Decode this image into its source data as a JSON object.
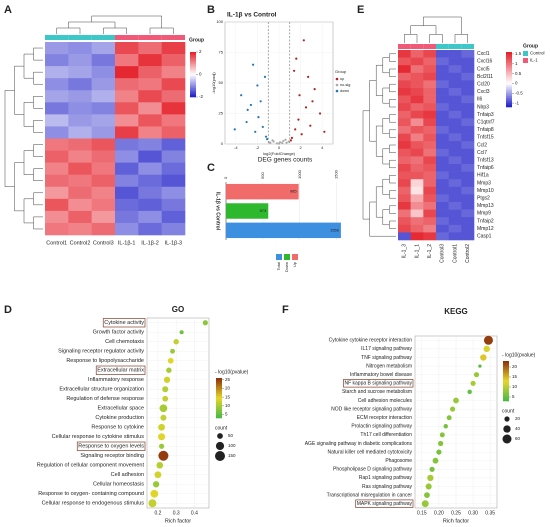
{
  "chart_data": [
    {
      "type": "heatmap",
      "panel": "A",
      "legend_title": "Group",
      "columns": [
        "Control1",
        "Control2",
        "Control3",
        "IL-1β-1",
        "IL-1β-2",
        "IL-1β-3"
      ],
      "column_colors": [
        "#3cc8c8",
        "#3cc8c8",
        "#3cc8c8",
        "#f05a78",
        "#f05a78",
        "#f05a78"
      ],
      "values": [
        [
          -0.9,
          -1.0,
          -0.8,
          1.6,
          1.3,
          1.7
        ],
        [
          -1.1,
          -0.9,
          -1.2,
          1.2,
          1.8,
          1.4
        ],
        [
          -0.7,
          -0.8,
          -1.0,
          1.9,
          1.4,
          1.1
        ],
        [
          -1.0,
          -1.2,
          -0.9,
          1.3,
          1.2,
          1.6
        ],
        [
          -0.8,
          -0.9,
          -0.7,
          1.1,
          1.6,
          1.3
        ],
        [
          -1.2,
          -1.0,
          -1.1,
          1.5,
          1.0,
          1.8
        ],
        [
          -0.6,
          -0.9,
          -0.8,
          1.0,
          1.5,
          1.2
        ],
        [
          -1.0,
          -0.7,
          -0.9,
          1.7,
          1.1,
          1.4
        ],
        [
          1.2,
          1.3,
          1.5,
          -1.2,
          -1.1,
          -1.4
        ],
        [
          1.4,
          1.1,
          1.3,
          -1.0,
          -1.5,
          -1.1
        ],
        [
          1.1,
          1.5,
          1.2,
          -1.4,
          -1.0,
          -1.3
        ],
        [
          1.3,
          1.2,
          1.4,
          -1.1,
          -1.3,
          -1.5
        ],
        [
          0.9,
          1.3,
          1.1,
          -1.5,
          -1.2,
          -1.0
        ],
        [
          1.5,
          1.0,
          1.2,
          -1.3,
          -1.4,
          -1.2
        ],
        [
          1.0,
          1.4,
          0.9,
          -1.2,
          -1.0,
          -1.4
        ],
        [
          1.2,
          1.1,
          1.3,
          -1.0,
          -1.3,
          -1.1
        ]
      ],
      "clim": [
        -2,
        2
      ],
      "cticks": [
        2,
        0,
        -2
      ]
    },
    {
      "type": "scatter",
      "panel": "B",
      "title": "IL-1β vs Control",
      "xlabel": "log2(FoldChange)",
      "ylabel": "-log10(padj)",
      "legend_title": "Group",
      "xlim": [
        -5,
        5
      ],
      "xticks": [
        -4,
        -2,
        0,
        2,
        4
      ],
      "ylim": [
        0,
        100
      ],
      "yticks": [
        0,
        25,
        50,
        75,
        100
      ],
      "thresholds": [
        -1,
        1
      ],
      "series": [
        {
          "name": "up",
          "color": "#b22222",
          "x": [
            1.2,
            1.5,
            1.8,
            2.1,
            2.5,
            2.9,
            3.3,
            3.8,
            4.2,
            1.4,
            1.9,
            2.3,
            2.7,
            3.1,
            1.1,
            1.6
          ],
          "values": [
            5,
            12,
            20,
            8,
            30,
            15,
            45,
            25,
            10,
            60,
            40,
            85,
            55,
            35,
            3,
            70
          ]
        },
        {
          "name": "no-sig",
          "color": "#aaaaaa",
          "x": [
            -0.8,
            -0.5,
            -0.2,
            0.1,
            0.4,
            0.7,
            -0.6,
            0.3,
            0.9,
            -0.9,
            0,
            0.6
          ],
          "values": [
            1,
            2,
            0.5,
            1.5,
            2.5,
            1,
            3,
            0.8,
            2,
            1.2,
            0.3,
            3.5
          ]
        },
        {
          "name": "down",
          "color": "#1f78b4",
          "x": [
            -1.2,
            -1.5,
            -1.9,
            -2.2,
            -2.6,
            -3.0,
            -3.5,
            -4.1,
            -1.3,
            -1.7,
            -2.4,
            -2.9,
            -1.1,
            -2.0
          ],
          "values": [
            6,
            14,
            22,
            10,
            32,
            18,
            40,
            12,
            55,
            35,
            65,
            28,
            4,
            48
          ]
        }
      ]
    },
    {
      "type": "hbar",
      "panel": "C",
      "title": "DEG genes counts",
      "ylabel": "IL-1β vs Control",
      "categories": [
        "Up",
        "Down",
        "Total"
      ],
      "values": [
        985,
        573,
        1558
      ],
      "colors": [
        "#f26b6b",
        "#2eb82e",
        "#3d8fe0"
      ],
      "xlim": [
        0,
        1600
      ],
      "xticks": [
        0,
        500,
        1000,
        1500
      ]
    },
    {
      "type": "heatmap",
      "panel": "E",
      "legend_title": "Group",
      "columns": [
        "IL-1_3",
        "IL-1_1",
        "IL-1_2",
        "Control3",
        "Control1",
        "Control2"
      ],
      "column_colors": [
        "#f05a78",
        "#f05a78",
        "#f05a78",
        "#3cc8c8",
        "#3cc8c8",
        "#3cc8c8"
      ],
      "groups": [
        {
          "name": "Control",
          "color": "#3cc8c8"
        },
        {
          "name": "IL-1",
          "color": "#f05a78"
        }
      ],
      "rows": [
        "Cxcl1",
        "Cxcl16",
        "Cxcl5",
        "Bcl2l11",
        "Ccl20",
        "Cxcl3",
        "Il6",
        "Nlrp3",
        "Tnfaip3",
        "C1qtnf7",
        "Tnfaip8",
        "Tnfsf15",
        "Ccl2",
        "Ccl7",
        "Tnfsf13",
        "Tnfaip6",
        "Hif1a",
        "Mmp3",
        "Mmp10",
        "Ptgs2",
        "Mmp13",
        "Mmp9",
        "Tnfaip2",
        "Mmp12",
        "Casp1"
      ],
      "values": [
        [
          1.4,
          1.1,
          1.3,
          -0.9,
          -0.9,
          -0.8
        ],
        [
          1.2,
          1.3,
          1.1,
          -0.8,
          -0.9,
          -0.9
        ],
        [
          1.5,
          1.0,
          1.2,
          -0.9,
          -0.8,
          -0.9
        ],
        [
          1.1,
          1.2,
          1.3,
          -0.9,
          -0.9,
          -0.8
        ],
        [
          1.3,
          1.2,
          1.0,
          -0.8,
          -0.9,
          -0.9
        ],
        [
          1.4,
          1.3,
          1.1,
          -0.9,
          -0.8,
          -0.9
        ],
        [
          1.2,
          1.4,
          1.1,
          -0.9,
          -0.9,
          -0.8
        ],
        [
          1.3,
          1.1,
          1.2,
          -0.8,
          -0.9,
          -0.9
        ],
        [
          1.1,
          1.3,
          1.4,
          -0.9,
          -0.8,
          -0.9
        ],
        [
          1.2,
          0.8,
          1.3,
          -0.9,
          -0.9,
          -0.8
        ],
        [
          1.0,
          1.2,
          1.1,
          -0.8,
          -0.9,
          -0.9
        ],
        [
          1.3,
          0.9,
          1.2,
          -0.9,
          -0.8,
          -0.9
        ],
        [
          1.4,
          1.2,
          1.1,
          -0.9,
          -0.9,
          -0.8
        ],
        [
          1.2,
          1.3,
          1.0,
          -0.8,
          -0.9,
          -0.9
        ],
        [
          1.1,
          1.0,
          1.3,
          -0.9,
          -0.8,
          -0.9
        ],
        [
          1.3,
          1.1,
          1.2,
          -0.9,
          -0.9,
          -0.8
        ],
        [
          1.2,
          1.2,
          1.1,
          -0.8,
          -0.9,
          -0.9
        ],
        [
          1.3,
          0.3,
          1.1,
          -0.9,
          -0.8,
          -0.9
        ],
        [
          1.1,
          0.2,
          1.3,
          -0.9,
          -0.9,
          -0.8
        ],
        [
          1.2,
          0.6,
          1.2,
          -0.8,
          -0.9,
          -0.9
        ],
        [
          1.4,
          0.8,
          1.0,
          -0.9,
          -0.8,
          -0.9
        ],
        [
          1.0,
          0.4,
          1.3,
          -0.9,
          -0.9,
          -0.8
        ],
        [
          1.2,
          1.0,
          1.1,
          -0.8,
          -0.9,
          -0.9
        ],
        [
          1.3,
          1.1,
          0.9,
          -0.9,
          -0.8,
          -0.9
        ],
        [
          -0.9,
          1.5,
          1.4,
          -0.8,
          -0.9,
          -0.9
        ]
      ],
      "clim": [
        -1.2,
        1.6
      ],
      "cticks": [
        1.5,
        1,
        0.5,
        0,
        -0.5,
        -1
      ]
    },
    {
      "type": "dot",
      "panel": "D",
      "title": "GO",
      "xlabel": "Rich factor",
      "categories": [
        "Cytokine activity",
        "Growth factor activity",
        "Cell chemotaxis",
        "Signaling receptor regulator activity",
        "Response to lipopolysaccharide",
        "Extracellular matrix",
        "Inflammatory response",
        "Extracellular structure organization",
        "Regulation of defense response",
        "Extracellular space",
        "Cytokine production",
        "Response to cytokine",
        "Cellular response to cytokine stimulus",
        "Response to oxygen levels",
        "Signaling receptor binding",
        "Regulation of cellular component movement",
        "Cell adhesion",
        "Cellular homeostasis",
        "Response to oxygen- containing compound",
        "Cellular response to endogenous stimulus"
      ],
      "values": [
        0.46,
        0.33,
        0.3,
        0.28,
        0.27,
        0.26,
        0.25,
        0.24,
        0.24,
        0.23,
        0.23,
        0.22,
        0.22,
        0.22,
        0.23,
        0.21,
        0.2,
        0.19,
        0.18,
        0.17
      ],
      "pvalues": [
        8,
        6,
        12,
        9,
        14,
        10,
        13,
        11,
        12,
        10,
        12,
        13,
        14,
        9,
        25,
        11,
        13,
        9,
        14,
        12
      ],
      "counts": [
        40,
        25,
        45,
        35,
        50,
        45,
        60,
        55,
        50,
        90,
        55,
        70,
        75,
        40,
        150,
        65,
        70,
        60,
        90,
        95
      ],
      "xlim": [
        0.14,
        0.48
      ],
      "xticks": [
        0.2,
        0.3,
        0.4
      ],
      "color_title": "- log10(pvalue)",
      "clim": [
        3,
        26
      ],
      "cticks": [
        5,
        10,
        15,
        20,
        25
      ],
      "size_title": "count",
      "size_ticks": [
        50,
        100,
        150
      ],
      "highlight": [
        0,
        5,
        13
      ]
    },
    {
      "type": "dot",
      "panel": "F",
      "title": "KEGG",
      "xlabel": "Rich factor",
      "categories": [
        "Cytokine cytokine receptor interaction",
        "IL17 signaling pathway",
        "TNF signaling pathway",
        "Nitrogen metabolism",
        "Inflammatory bowel disease",
        "NF kappa B signaling pathway",
        "Starch and sucrose metabolism",
        "Cell adhesion molecules",
        "NOD like receptor signaling pathway",
        "ECM receptor interaction",
        "Prolactin signaling pathway",
        "Th17 cell differentiation",
        "AGE signaling pathway in diabetic complications",
        "Natural killer cell mediated cytotoxicity",
        "Phagosome",
        "Phospholipase D signaling pathway",
        "Rap1 signaling pathway",
        "Ras signaling pathway",
        "Transcriptional misregulation in cancer",
        "MAPK signaling pathway"
      ],
      "values": [
        0.345,
        0.34,
        0.33,
        0.32,
        0.31,
        0.3,
        0.29,
        0.25,
        0.24,
        0.23,
        0.22,
        0.21,
        0.205,
        0.2,
        0.19,
        0.18,
        0.175,
        0.17,
        0.165,
        0.16
      ],
      "pvalues": [
        22,
        12,
        14,
        4,
        8,
        9,
        5,
        8,
        8,
        7,
        6,
        7,
        7,
        6,
        7,
        6,
        9,
        8,
        7,
        8
      ],
      "counts": [
        60,
        30,
        30,
        8,
        20,
        20,
        15,
        25,
        20,
        18,
        15,
        18,
        20,
        20,
        25,
        20,
        30,
        28,
        25,
        35
      ],
      "xlim": [
        0.13,
        0.37
      ],
      "xticks": [
        0.15,
        {
          "value": 0.2,
          "label": "0.20"
        },
        0.25,
        {
          "value": 0.3,
          "label": "0.30"
        },
        0.35
      ],
      "color_title": "- log10(pvalue)",
      "clim": [
        3,
        23
      ],
      "cticks": [
        5,
        10,
        15,
        20
      ],
      "size_title": "count",
      "size_ticks": [
        20,
        40,
        60
      ],
      "highlight": [
        5,
        19
      ]
    }
  ]
}
